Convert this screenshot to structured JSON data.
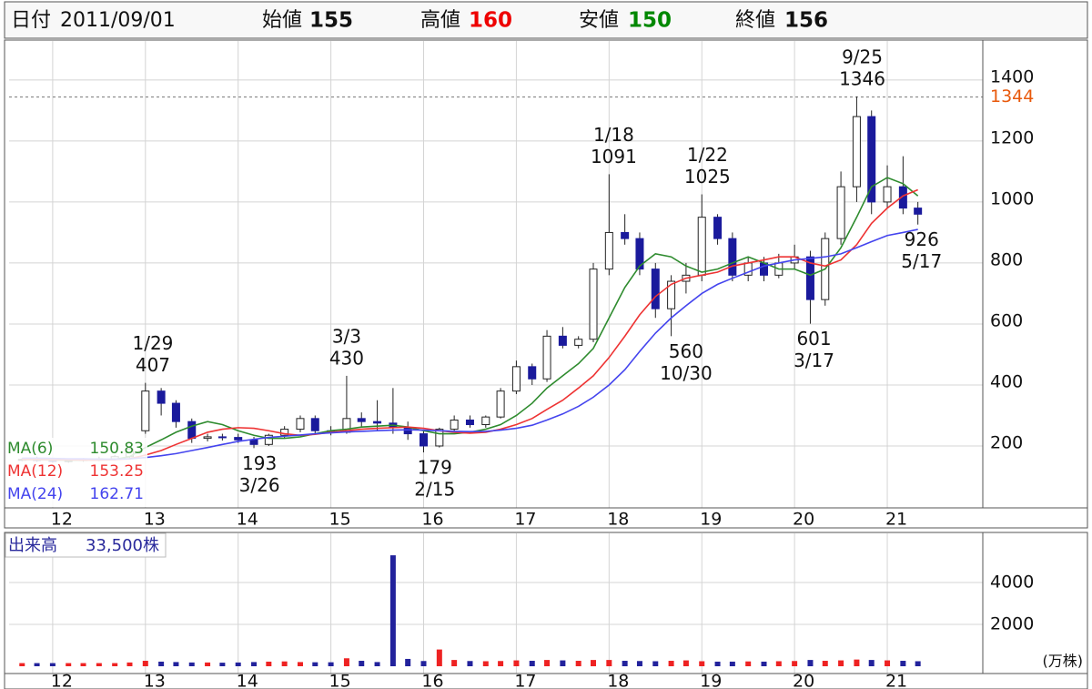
{
  "header": {
    "date_label": "日付",
    "date": "2011/09/01",
    "open_label": "始値",
    "open": 155,
    "high_label": "高値",
    "high": 160,
    "low_label": "安値",
    "low": 150,
    "close_label": "終値",
    "close": 156
  },
  "chart_data": [
    {
      "type": "candlestick",
      "xlim": [
        2011.53,
        2022.03
      ],
      "ylim": [
        0,
        1522
      ],
      "xticks": [
        {
          "value": 2012,
          "label": "12"
        },
        {
          "value": 2013,
          "label": "13"
        },
        {
          "value": 2014,
          "label": "14"
        },
        {
          "value": 2015,
          "label": "15"
        },
        {
          "value": 2016,
          "label": "16"
        },
        {
          "value": 2017,
          "label": "17"
        },
        {
          "value": 2018,
          "label": "18"
        },
        {
          "value": 2019,
          "label": "19"
        },
        {
          "value": 2020,
          "label": "20"
        },
        {
          "value": 2021,
          "label": "21"
        }
      ],
      "yticks": [
        200,
        400,
        600,
        800,
        1000,
        1200,
        1400
      ],
      "grid": true,
      "up_color": "#ffffff",
      "down_color": "#1a1a9c",
      "candles": {
        "x": [
          2011.67,
          2011.83,
          2012.0,
          2012.17,
          2012.33,
          2012.5,
          2012.67,
          2012.83,
          2013.0,
          2013.17,
          2013.33,
          2013.5,
          2013.67,
          2013.83,
          2014.0,
          2014.17,
          2014.33,
          2014.5,
          2014.67,
          2014.83,
          2015.0,
          2015.17,
          2015.33,
          2015.5,
          2015.67,
          2015.83,
          2016.0,
          2016.17,
          2016.33,
          2016.5,
          2016.67,
          2016.83,
          2017.0,
          2017.17,
          2017.33,
          2017.5,
          2017.67,
          2017.83,
          2018.0,
          2018.17,
          2018.33,
          2018.5,
          2018.67,
          2018.83,
          2019.0,
          2019.17,
          2019.33,
          2019.5,
          2019.67,
          2019.83,
          2020.0,
          2020.17,
          2020.33,
          2020.5,
          2020.67,
          2020.83,
          2021.0,
          2021.17,
          2021.33
        ],
        "open": [
          155,
          156,
          152,
          150,
          152,
          155,
          158,
          165,
          250,
          380,
          340,
          280,
          225,
          230,
          228,
          220,
          205,
          235,
          255,
          290,
          250,
          245,
          290,
          280,
          275,
          260,
          240,
          200,
          255,
          285,
          270,
          295,
          380,
          460,
          420,
          560,
          530,
          550,
          780,
          900,
          880,
          780,
          650,
          740,
          760,
          950,
          880,
          760,
          800,
          760,
          800,
          820,
          680,
          880,
          1050,
          1280,
          1000,
          1050,
          980
        ],
        "high": [
          160,
          165,
          160,
          158,
          160,
          165,
          170,
          200,
          407,
          390,
          350,
          290,
          240,
          240,
          240,
          230,
          240,
          265,
          300,
          300,
          265,
          430,
          310,
          350,
          390,
          280,
          250,
          260,
          300,
          300,
          300,
          390,
          480,
          470,
          580,
          590,
          560,
          800,
          1091,
          960,
          900,
          800,
          760,
          800,
          1025,
          960,
          900,
          820,
          820,
          830,
          860,
          840,
          900,
          1100,
          1346,
          1300,
          1120,
          1150,
          1000
        ],
        "low": [
          150,
          148,
          145,
          145,
          148,
          150,
          152,
          160,
          240,
          300,
          260,
          210,
          215,
          218,
          210,
          193,
          200,
          225,
          245,
          240,
          235,
          240,
          260,
          250,
          240,
          220,
          179,
          195,
          245,
          260,
          260,
          290,
          370,
          400,
          410,
          520,
          520,
          540,
          760,
          860,
          760,
          620,
          560,
          700,
          740,
          860,
          740,
          740,
          740,
          750,
          780,
          601,
          660,
          860,
          1000,
          960,
          980,
          960,
          926
        ],
        "close": [
          156,
          152,
          150,
          152,
          155,
          158,
          165,
          190,
          380,
          340,
          280,
          225,
          230,
          228,
          220,
          205,
          235,
          255,
          290,
          250,
          245,
          290,
          280,
          275,
          260,
          240,
          200,
          255,
          285,
          270,
          295,
          380,
          460,
          420,
          560,
          530,
          550,
          780,
          900,
          880,
          780,
          650,
          740,
          760,
          950,
          880,
          760,
          800,
          760,
          800,
          820,
          680,
          880,
          1050,
          1280,
          1000,
          1050,
          980,
          960
        ]
      },
      "series": [
        {
          "name": "MA(6)",
          "color": "#2e8b2e",
          "last": 150.83,
          "values": [
            155,
            155,
            154,
            153,
            153,
            154,
            156,
            165,
            195,
            220,
            245,
            265,
            280,
            270,
            250,
            235,
            225,
            225,
            230,
            240,
            250,
            255,
            262,
            265,
            268,
            262,
            250,
            240,
            240,
            245,
            255,
            270,
            300,
            340,
            390,
            430,
            470,
            520,
            620,
            720,
            790,
            830,
            820,
            790,
            770,
            780,
            800,
            820,
            800,
            780,
            780,
            760,
            780,
            850,
            950,
            1050,
            1080,
            1060,
            1020
          ]
        },
        {
          "name": "MA(12)",
          "color": "#ee3333",
          "last": 153.25,
          "values": [
            156,
            156,
            155,
            155,
            154,
            154,
            155,
            158,
            170,
            185,
            205,
            225,
            245,
            255,
            260,
            258,
            250,
            240,
            235,
            238,
            245,
            250,
            255,
            258,
            260,
            262,
            258,
            250,
            245,
            242,
            245,
            255,
            270,
            290,
            320,
            350,
            390,
            430,
            490,
            560,
            630,
            690,
            730,
            750,
            760,
            770,
            790,
            800,
            810,
            820,
            820,
            800,
            790,
            810,
            860,
            930,
            980,
            1020,
            1040
          ]
        },
        {
          "name": "MA(24)",
          "color": "#4444ee",
          "last": 162.71,
          "values": [
            160,
            160,
            159,
            158,
            158,
            157,
            157,
            158,
            162,
            168,
            175,
            185,
            195,
            205,
            215,
            222,
            228,
            232,
            236,
            240,
            243,
            246,
            248,
            250,
            252,
            253,
            252,
            250,
            248,
            247,
            248,
            252,
            258,
            268,
            285,
            305,
            330,
            360,
            400,
            450,
            510,
            570,
            620,
            660,
            700,
            730,
            750,
            770,
            790,
            800,
            810,
            815,
            820,
            830,
            850,
            870,
            890,
            900,
            910
          ]
        }
      ],
      "reference": {
        "value": 1344,
        "color": "#e8590c"
      },
      "annotations": [
        {
          "x": 2013.08,
          "date": "1/29",
          "value": 407,
          "kind": "high"
        },
        {
          "x": 2014.23,
          "date": "3/26",
          "value": 193,
          "kind": "low"
        },
        {
          "x": 2015.17,
          "date": "3/3",
          "value": 430,
          "kind": "high"
        },
        {
          "x": 2016.12,
          "date": "2/15",
          "value": 179,
          "kind": "low"
        },
        {
          "x": 2018.05,
          "date": "1/18",
          "value": 1091,
          "kind": "high"
        },
        {
          "x": 2018.83,
          "date": "10/30",
          "value": 560,
          "kind": "low"
        },
        {
          "x": 2019.06,
          "date": "1/22",
          "value": 1025,
          "kind": "high"
        },
        {
          "x": 2020.21,
          "date": "3/17",
          "value": 601,
          "kind": "low"
        },
        {
          "x": 2020.73,
          "date": "9/25",
          "value": 1346,
          "kind": "high"
        },
        {
          "x": 2021.37,
          "date": "5/17",
          "value": 926,
          "kind": "low"
        }
      ]
    },
    {
      "type": "bar",
      "title": "出来高",
      "subtitle": "33,500株",
      "unit": "(万株)",
      "xlim": [
        2011.53,
        2022.03
      ],
      "ylim": [
        0,
        6174
      ],
      "yticks": [
        2000,
        4000
      ],
      "up_color": "#ee2222",
      "down_color": "#22229c",
      "values": [
        150,
        150,
        150,
        150,
        150,
        150,
        150,
        180,
        260,
        220,
        200,
        180,
        180,
        170,
        180,
        200,
        220,
        230,
        200,
        190,
        190,
        380,
        260,
        200,
        5300,
        350,
        250,
        800,
        300,
        250,
        240,
        250,
        280,
        260,
        300,
        280,
        260,
        300,
        300,
        260,
        250,
        240,
        260,
        280,
        240,
        220,
        220,
        230,
        220,
        240,
        250,
        300,
        260,
        280,
        320,
        300,
        280,
        260,
        240
      ]
    }
  ]
}
